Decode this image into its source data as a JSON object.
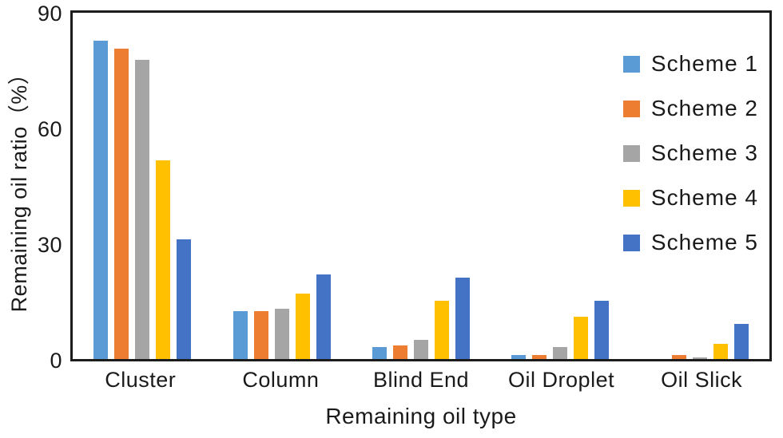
{
  "figure": {
    "background_color": "#ffffff",
    "axis_color": "#1c1c1c",
    "text_color": "#1a1a1a"
  },
  "chart_data": {
    "type": "bar",
    "title": "",
    "xlabel": "Remaining oil type",
    "ylabel": "Remaining oil ratio（%）",
    "ylim": [
      0,
      90
    ],
    "yticks": [
      0,
      30,
      60,
      90
    ],
    "grid": false,
    "legend_position": "top-right-inside",
    "categories": [
      "Cluster",
      "Column",
      "Blind End",
      "Oil Droplet",
      "Oil Slick"
    ],
    "series": [
      {
        "name": "Scheme 1",
        "color": "#5B9BD5",
        "values": [
          82.5,
          12.5,
          3,
          1,
          0
        ]
      },
      {
        "name": "Scheme 2",
        "color": "#ED7D31",
        "values": [
          80.5,
          12.5,
          3.5,
          1,
          1
        ]
      },
      {
        "name": "Scheme 3",
        "color": "#A5A5A5",
        "values": [
          77.5,
          13,
          5,
          3,
          0.5
        ]
      },
      {
        "name": "Scheme 4",
        "color": "#FFC000",
        "values": [
          51.5,
          17,
          15,
          11,
          4
        ]
      },
      {
        "name": "Scheme 5",
        "color": "#4472C4",
        "values": [
          31,
          22,
          21,
          15,
          9
        ]
      }
    ]
  }
}
